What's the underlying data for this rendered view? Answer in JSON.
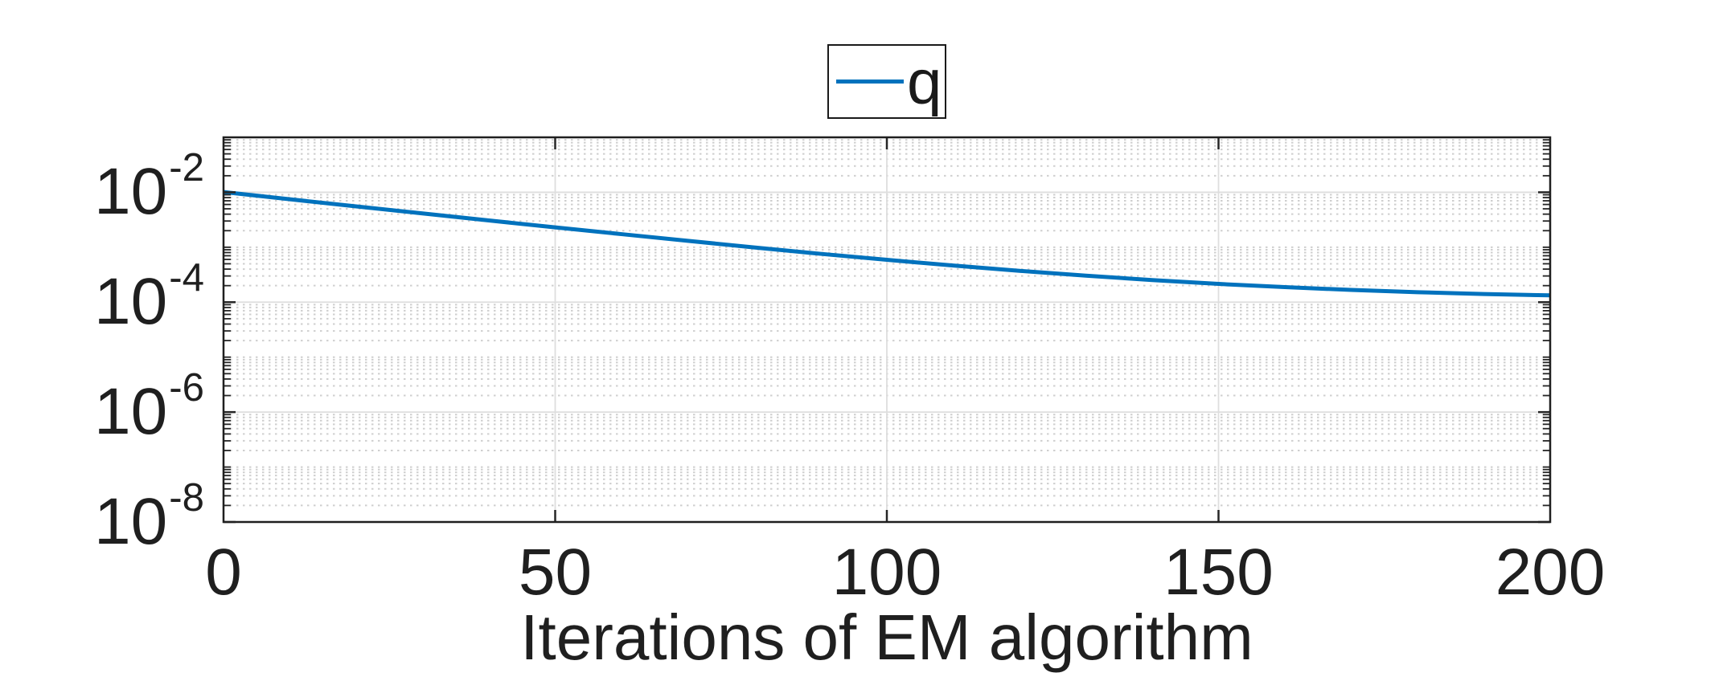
{
  "figure": {
    "background": "#ffffff"
  },
  "legend": {
    "border_color": "#1a1a1a",
    "position": "top-center",
    "entries": [
      {
        "label": "q",
        "color": "#0072BD"
      }
    ]
  },
  "chart_data": {
    "type": "line",
    "title": "",
    "xlabel": "Iterations of EM algorithm",
    "ylabel": "",
    "x_scale": "linear",
    "y_scale": "log10",
    "xlim": [
      0,
      200
    ],
    "ylim": [
      1e-08,
      0.1
    ],
    "grid": {
      "major": true,
      "minor": true
    },
    "x_ticks": [
      {
        "value": 0,
        "label": "0"
      },
      {
        "value": 50,
        "label": "50"
      },
      {
        "value": 100,
        "label": "100"
      },
      {
        "value": 150,
        "label": "150"
      },
      {
        "value": 200,
        "label": "200"
      }
    ],
    "y_ticks": [
      {
        "value": 0.01,
        "base": "10",
        "exp": "-2"
      },
      {
        "value": 0.0001,
        "base": "10",
        "exp": "-4"
      },
      {
        "value": 1e-06,
        "base": "10",
        "exp": "-6"
      },
      {
        "value": 1e-08,
        "base": "10",
        "exp": "-8"
      }
    ],
    "series": [
      {
        "name": "q",
        "color": "#0072BD",
        "line_width": 5,
        "x": [
          0,
          10,
          20,
          30,
          40,
          50,
          60,
          70,
          80,
          90,
          100,
          110,
          120,
          130,
          140,
          150,
          160,
          170,
          180,
          190,
          200
        ],
        "y": [
          0.0101,
          0.00746,
          0.00554,
          0.00412,
          0.00307,
          0.0023,
          0.00173,
          0.00131,
          0.00099,
          0.000759,
          0.00059,
          0.000464,
          0.000372,
          0.000304,
          0.000253,
          0.000215,
          0.000188,
          0.000167,
          0.000152,
          0.000141,
          0.000133
        ]
      }
    ]
  },
  "style": {
    "axis_color": "#1f1f1f",
    "tick_color": "#262626",
    "major_grid_color": "#dedede",
    "minor_grid_color": "#cfcfcf",
    "label_color": "#1f1f1f"
  }
}
